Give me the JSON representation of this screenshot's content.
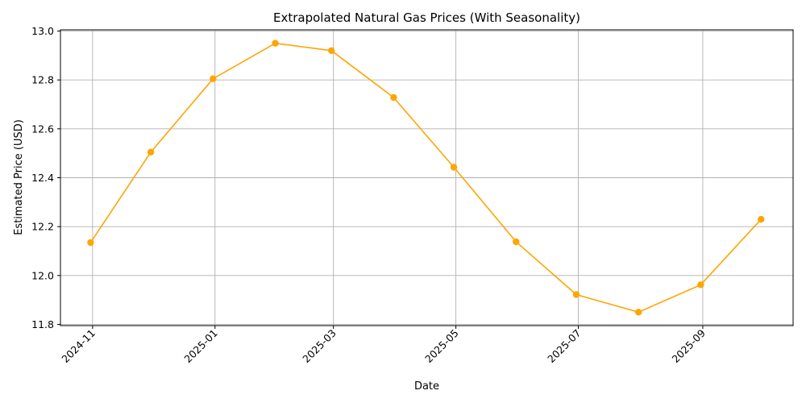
{
  "chart_data": {
    "type": "line",
    "title": "Extrapolated Natural Gas Prices (With Seasonality)",
    "xlabel": "Date",
    "ylabel": "Estimated Price (USD)",
    "x": [
      "2024-10-31",
      "2024-11-30",
      "2024-12-31",
      "2025-01-31",
      "2025-02-28",
      "2025-03-31",
      "2025-04-30",
      "2025-05-31",
      "2025-06-30",
      "2025-07-31",
      "2025-08-31",
      "2025-09-30"
    ],
    "series": [
      {
        "values": [
          12.135,
          12.505,
          12.805,
          12.95,
          12.92,
          12.728,
          12.443,
          12.138,
          11.922,
          11.85,
          11.962,
          12.23
        ],
        "color": "#FFA500",
        "marker": "circle"
      }
    ],
    "xticks": [
      "2024-11",
      "2025-01",
      "2025-03",
      "2025-05",
      "2025-07",
      "2025-09"
    ],
    "xlim": [
      "2024-10-16",
      "2025-10-16"
    ],
    "yticks": [
      "11.8",
      "12.0",
      "12.2",
      "12.4",
      "12.6",
      "12.8",
      "13.0"
    ],
    "ylim": [
      11.795,
      13.005
    ],
    "grid": true
  }
}
